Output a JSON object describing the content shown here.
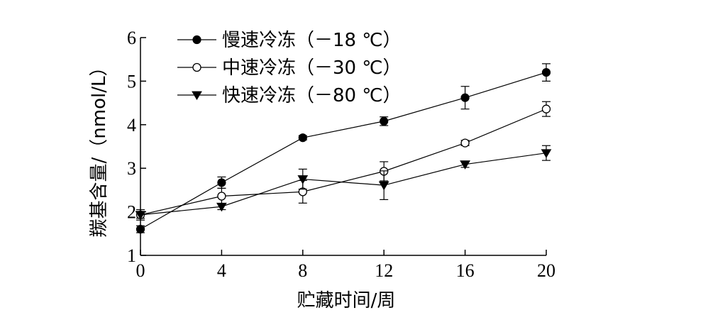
{
  "chart_data": {
    "type": "line",
    "xlabel": "贮藏时间/周",
    "ylabel": "羰基含量/（nmol/L）",
    "x": [
      0,
      4,
      8,
      12,
      16,
      20
    ],
    "xticks": [
      "0",
      "4",
      "8",
      "12",
      "16",
      "20"
    ],
    "yticks": [
      "1",
      "2",
      "3",
      "4",
      "5",
      "6"
    ],
    "xlim": [
      0,
      20
    ],
    "ylim": [
      1,
      6
    ],
    "grid": false,
    "legend_position": "top-left",
    "series": [
      {
        "name": "慢速冷冻（－18 ℃）",
        "marker": "filled-circle",
        "values": [
          1.6,
          2.67,
          3.7,
          4.08,
          4.62,
          5.2
        ],
        "errors": [
          0.08,
          0.13,
          0.05,
          0.1,
          0.26,
          0.2
        ]
      },
      {
        "name": "中速冷冻（－30 ℃）",
        "marker": "open-circle",
        "values": [
          1.93,
          2.36,
          2.46,
          2.93,
          3.58,
          4.36
        ],
        "errors": [
          0.08,
          0.18,
          0.26,
          0.22,
          0.06,
          0.17
        ]
      },
      {
        "name": "快速冷冻（－80 ℃）",
        "marker": "filled-triangle-down",
        "values": [
          1.93,
          2.12,
          2.75,
          2.61,
          3.09,
          3.35
        ],
        "errors": [
          0.12,
          0.07,
          0.23,
          0.33,
          0.07,
          0.17
        ]
      }
    ]
  }
}
